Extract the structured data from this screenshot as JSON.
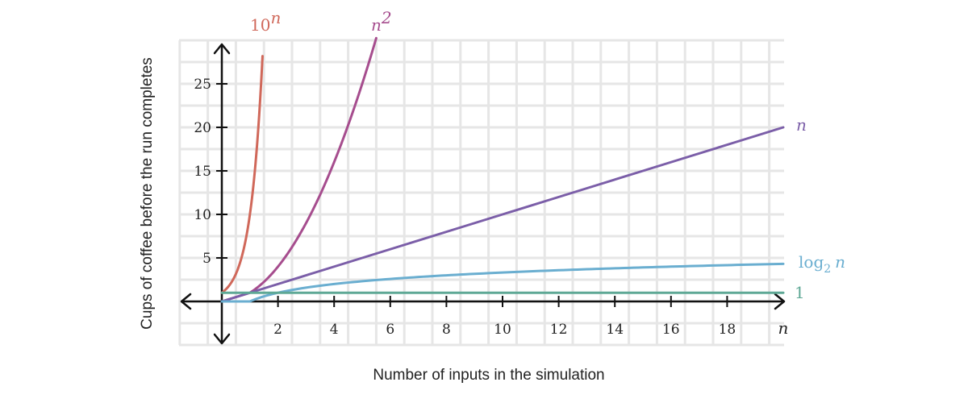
{
  "chart_data": {
    "type": "line",
    "xlabel": "Number of inputs in the simulation",
    "ylabel": "Cups of coffee before the run completes",
    "x_axis_name": "n",
    "xlim": [
      -1.5,
      20
    ],
    "ylim": [
      -5,
      30
    ],
    "x_ticks": [
      2,
      4,
      6,
      8,
      10,
      12,
      14,
      16,
      18
    ],
    "y_ticks": [
      5,
      10,
      15,
      20,
      25
    ],
    "grid": true,
    "legend": "curve labels at line ends",
    "series": [
      {
        "name": "10^n",
        "label_base": "10",
        "label_sup": "n",
        "color": "#d0685a",
        "x": [
          0,
          0.3,
          0.6,
          0.9,
          1.2,
          1.45
        ],
        "y": [
          1,
          2,
          3.98,
          7.94,
          15.85,
          28.18
        ]
      },
      {
        "name": "n^2",
        "label_base": "n",
        "label_sup": "2",
        "color": "#a64d8e",
        "x": [
          1,
          2,
          3,
          4,
          5,
          5.5
        ],
        "y": [
          1,
          4,
          9,
          16,
          25,
          30.25
        ]
      },
      {
        "name": "n",
        "label_base": "n",
        "color": "#7b5ea8",
        "x": [
          0,
          20
        ],
        "y": [
          0,
          20
        ]
      },
      {
        "name": "log_2 n",
        "label_base": "log",
        "label_sub": "2",
        "label_tail": "n",
        "color": "#6aaed0",
        "x": [
          1,
          2,
          4,
          6,
          8,
          10,
          12,
          14,
          16,
          18,
          20
        ],
        "y": [
          0,
          1,
          2,
          2.58,
          3,
          3.32,
          3.58,
          3.81,
          4,
          4.17,
          4.32
        ]
      },
      {
        "name": "1",
        "label_base": "1",
        "color": "#5ea895",
        "x": [
          1,
          20
        ],
        "y": [
          1,
          1
        ]
      }
    ]
  }
}
